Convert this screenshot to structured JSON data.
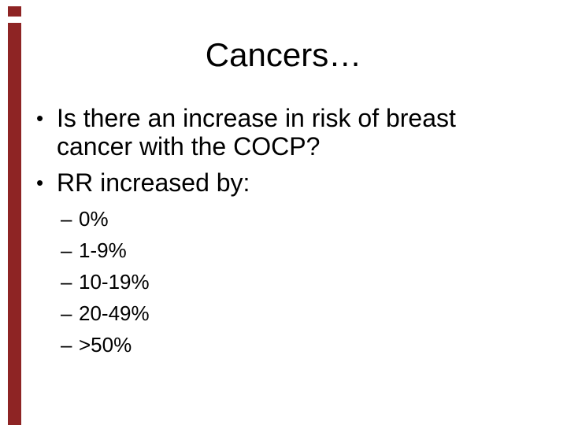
{
  "slide": {
    "title": "Cancers…",
    "bullet_marker": "•",
    "sub_marker": "–",
    "accent_color": "#8e2424",
    "background_color": "#ffffff",
    "text_color": "#000000",
    "bullets": [
      {
        "lines": [
          "Is there an increase in risk of breast",
          "cancer with the COCP?"
        ]
      },
      {
        "lines": [
          "RR increased by:"
        ]
      }
    ],
    "sub_bullets": [
      "0%",
      "1-9%",
      "10-19%",
      "20-49%",
      ">50%"
    ]
  }
}
